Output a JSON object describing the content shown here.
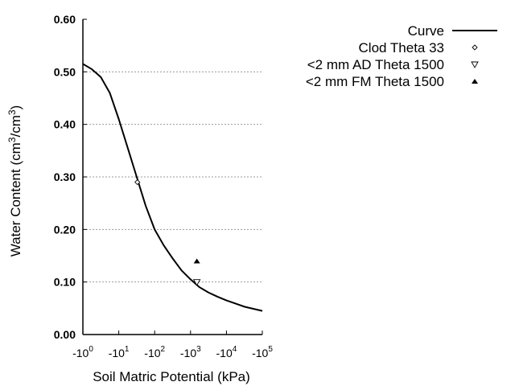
{
  "chart_data": {
    "type": "line",
    "title": "",
    "xlabel": "Soil Matric Potential (kPa)",
    "ylabel": {
      "prefix": "Water Content (cm",
      "sup1": "3",
      "mid": "/cm",
      "sup2": "3",
      "suffix": ")"
    },
    "x_scale": "log (negative potentials)",
    "xlim_log10": [
      0,
      5
    ],
    "x_ticks": [
      {
        "base": "-10",
        "exp": "0"
      },
      {
        "base": "-10",
        "exp": "1"
      },
      {
        "base": "-10",
        "exp": "2"
      },
      {
        "base": "-10",
        "exp": "3"
      },
      {
        "base": "-10",
        "exp": "4"
      },
      {
        "base": "-10",
        "exp": "5"
      }
    ],
    "ylim": [
      0,
      0.6
    ],
    "y_ticks": [
      "0.00",
      "0.10",
      "0.20",
      "0.30",
      "0.40",
      "0.50",
      "0.60"
    ],
    "grid": "horizontal dotted",
    "legend_placement": "top-right outside",
    "series": [
      {
        "name": "Curve",
        "kind": "line",
        "color": "#000000",
        "x_kpa": [
          -1,
          -1.78,
          -3.16,
          -5.62,
          -10,
          -17.8,
          -31.6,
          -56.2,
          -100,
          -178,
          -316,
          -562,
          -1000,
          -1780,
          -3160,
          -5620,
          -10000,
          -17800,
          -31600,
          -56200,
          -100000
        ],
        "y": [
          0.515,
          0.505,
          0.49,
          0.46,
          0.41,
          0.355,
          0.3,
          0.245,
          0.2,
          0.17,
          0.145,
          0.122,
          0.105,
          0.09,
          0.08,
          0.072,
          0.065,
          0.059,
          0.053,
          0.049,
          0.045
        ]
      },
      {
        "name": "Clod Theta 33",
        "kind": "marker",
        "marker": "open-diamond",
        "x_kpa": [
          -33
        ],
        "y": [
          0.29
        ]
      },
      {
        "name": "<2 mm AD Theta 1500",
        "kind": "marker",
        "marker": "open-triangle-down",
        "x_kpa": [
          -1500
        ],
        "y": [
          0.1
        ]
      },
      {
        "name": "<2 mm FM Theta 1500",
        "kind": "marker",
        "marker": "filled-triangle-up",
        "x_kpa": [
          -1500
        ],
        "y": [
          0.14
        ]
      }
    ]
  }
}
